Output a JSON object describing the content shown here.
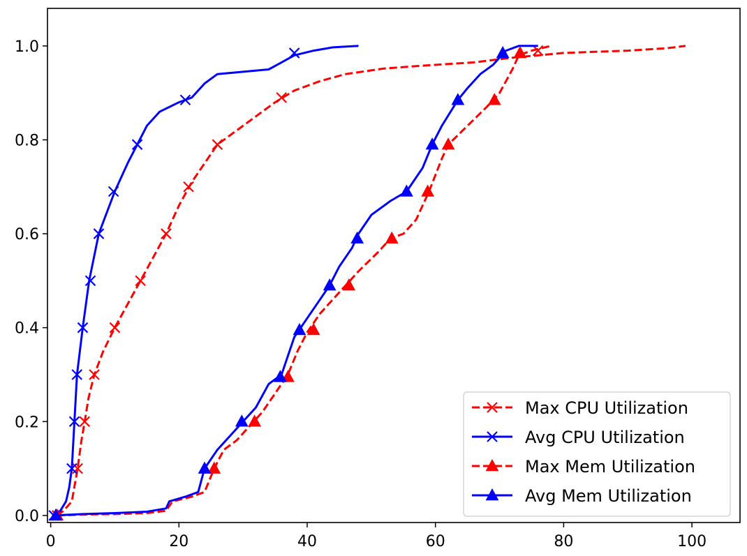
{
  "chart_data": {
    "type": "line",
    "title": "",
    "xlabel": "",
    "ylabel": "",
    "xlim": [
      -0.5,
      107.5
    ],
    "ylim": [
      -0.015,
      1.08
    ],
    "grid": false,
    "legend_position": "lower-right",
    "x_ticks": [
      {
        "value": 0,
        "label": "0"
      },
      {
        "value": 20,
        "label": "20"
      },
      {
        "value": 40,
        "label": "40"
      },
      {
        "value": 60,
        "label": "60"
      },
      {
        "value": 80,
        "label": "80"
      },
      {
        "value": 100,
        "label": "100"
      }
    ],
    "y_ticks": [
      {
        "value": 0.0,
        "label": "0.0"
      },
      {
        "value": 0.2,
        "label": "0.2"
      },
      {
        "value": 0.4,
        "label": "0.4"
      },
      {
        "value": 0.6,
        "label": "0.6"
      },
      {
        "value": 0.8,
        "label": "0.8"
      },
      {
        "value": 1.0,
        "label": "1.0"
      }
    ],
    "series": [
      {
        "name": "Max CPU Utilization",
        "color": "#ff0000",
        "dash": true,
        "marker": "x",
        "points": [
          [
            1,
            0.0
          ],
          [
            2,
            0.01
          ],
          [
            3.3,
            0.03
          ],
          [
            4.2,
            0.1
          ],
          [
            4.8,
            0.16
          ],
          [
            5.3,
            0.2
          ],
          [
            5.9,
            0.25
          ],
          [
            6.8,
            0.3
          ],
          [
            8.2,
            0.35
          ],
          [
            10,
            0.4
          ],
          [
            12,
            0.45
          ],
          [
            14,
            0.5
          ],
          [
            16,
            0.55
          ],
          [
            18,
            0.6
          ],
          [
            20,
            0.66
          ],
          [
            22,
            0.71
          ],
          [
            24,
            0.75
          ],
          [
            26,
            0.79
          ],
          [
            29,
            0.82
          ],
          [
            32,
            0.85
          ],
          [
            35,
            0.88
          ],
          [
            38,
            0.905
          ],
          [
            42,
            0.925
          ],
          [
            46,
            0.94
          ],
          [
            52,
            0.952
          ],
          [
            58,
            0.958
          ],
          [
            66,
            0.965
          ],
          [
            72,
            0.975
          ],
          [
            80,
            0.985
          ],
          [
            90,
            0.99
          ],
          [
            96,
            0.995
          ],
          [
            99,
            1.0
          ]
        ],
        "markers": [
          [
            1,
            0.0
          ],
          [
            4.2,
            0.1
          ],
          [
            5.3,
            0.2
          ],
          [
            6.8,
            0.3
          ],
          [
            10,
            0.4
          ],
          [
            14,
            0.5
          ],
          [
            18,
            0.6
          ],
          [
            21.5,
            0.7
          ],
          [
            26,
            0.79
          ],
          [
            36,
            0.89
          ],
          [
            76,
            0.99
          ]
        ]
      },
      {
        "name": "Avg CPU Utilization",
        "color": "#0000ff",
        "dash": false,
        "marker": "x",
        "points": [
          [
            0.5,
            0.0
          ],
          [
            1.5,
            0.01
          ],
          [
            2.4,
            0.03
          ],
          [
            2.9,
            0.06
          ],
          [
            3.3,
            0.1
          ],
          [
            3.7,
            0.2
          ],
          [
            4.1,
            0.3
          ],
          [
            5.0,
            0.4
          ],
          [
            6.0,
            0.5
          ],
          [
            7.5,
            0.6
          ],
          [
            10,
            0.69
          ],
          [
            12,
            0.75
          ],
          [
            13.5,
            0.79
          ],
          [
            15,
            0.83
          ],
          [
            17,
            0.86
          ],
          [
            20,
            0.88
          ],
          [
            22,
            0.89
          ],
          [
            24,
            0.92
          ],
          [
            26,
            0.94
          ],
          [
            30,
            0.945
          ],
          [
            34,
            0.95
          ],
          [
            36,
            0.965
          ],
          [
            38,
            0.98
          ],
          [
            41,
            0.99
          ],
          [
            44,
            0.997
          ],
          [
            48,
            1.0
          ]
        ],
        "markers": [
          [
            0.5,
            0.0
          ],
          [
            3.3,
            0.1
          ],
          [
            3.7,
            0.2
          ],
          [
            4.1,
            0.3
          ],
          [
            5.0,
            0.4
          ],
          [
            6.2,
            0.5
          ],
          [
            7.5,
            0.6
          ],
          [
            9.8,
            0.69
          ],
          [
            13.5,
            0.79
          ],
          [
            21,
            0.885
          ],
          [
            38,
            0.985
          ]
        ]
      },
      {
        "name": "Max Mem Utilization",
        "color": "#ff0000",
        "dash": true,
        "marker": "triangle",
        "points": [
          [
            1,
            0.0
          ],
          [
            5,
            0.002
          ],
          [
            10,
            0.003
          ],
          [
            15,
            0.005
          ],
          [
            18,
            0.01
          ],
          [
            19,
            0.03
          ],
          [
            22,
            0.04
          ],
          [
            24,
            0.05
          ],
          [
            25.5,
            0.1
          ],
          [
            27,
            0.14
          ],
          [
            29,
            0.16
          ],
          [
            31,
            0.19
          ],
          [
            33,
            0.22
          ],
          [
            35,
            0.26
          ],
          [
            37,
            0.3
          ],
          [
            38.5,
            0.35
          ],
          [
            40,
            0.39
          ],
          [
            42,
            0.43
          ],
          [
            44,
            0.46
          ],
          [
            46,
            0.49
          ],
          [
            48,
            0.52
          ],
          [
            51,
            0.56
          ],
          [
            53,
            0.59
          ],
          [
            55,
            0.6
          ],
          [
            57,
            0.63
          ],
          [
            59,
            0.69
          ],
          [
            61,
            0.76
          ],
          [
            62,
            0.79
          ],
          [
            65,
            0.83
          ],
          [
            68,
            0.87
          ],
          [
            70,
            0.9
          ],
          [
            72,
            0.95
          ],
          [
            73,
            0.98
          ],
          [
            75,
            0.99
          ],
          [
            78,
            1.0
          ]
        ],
        "markers": [
          [
            1,
            0.0
          ],
          [
            25.5,
            0.1
          ],
          [
            31.8,
            0.2
          ],
          [
            37,
            0.295
          ],
          [
            41,
            0.395
          ],
          [
            46.5,
            0.49
          ],
          [
            53.2,
            0.59
          ],
          [
            58.8,
            0.69
          ],
          [
            62,
            0.79
          ],
          [
            69.2,
            0.885
          ],
          [
            73.2,
            0.985
          ]
        ]
      },
      {
        "name": "Avg Mem Utilization",
        "color": "#0000ff",
        "dash": false,
        "marker": "triangle",
        "points": [
          [
            0.5,
            0.0
          ],
          [
            5,
            0.003
          ],
          [
            10,
            0.005
          ],
          [
            15,
            0.008
          ],
          [
            18,
            0.015
          ],
          [
            18.5,
            0.03
          ],
          [
            21,
            0.04
          ],
          [
            23,
            0.05
          ],
          [
            24,
            0.1
          ],
          [
            26,
            0.14
          ],
          [
            28,
            0.17
          ],
          [
            30,
            0.2
          ],
          [
            32,
            0.23
          ],
          [
            34,
            0.28
          ],
          [
            36,
            0.3
          ],
          [
            37,
            0.34
          ],
          [
            38,
            0.38
          ],
          [
            40,
            0.42
          ],
          [
            42,
            0.46
          ],
          [
            43.5,
            0.49
          ],
          [
            45,
            0.53
          ],
          [
            47,
            0.57
          ],
          [
            48,
            0.6
          ],
          [
            50,
            0.64
          ],
          [
            53,
            0.67
          ],
          [
            55.5,
            0.69
          ],
          [
            58,
            0.74
          ],
          [
            59.5,
            0.79
          ],
          [
            61,
            0.83
          ],
          [
            63.5,
            0.885
          ],
          [
            65,
            0.91
          ],
          [
            67,
            0.94
          ],
          [
            69,
            0.96
          ],
          [
            71,
            0.99
          ],
          [
            73,
            1.0
          ],
          [
            76,
            1.0
          ]
        ],
        "markers": [
          [
            0.8,
            0.0
          ],
          [
            24,
            0.1
          ],
          [
            29.8,
            0.2
          ],
          [
            35.8,
            0.295
          ],
          [
            38.8,
            0.395
          ],
          [
            43.5,
            0.49
          ],
          [
            47.8,
            0.59
          ],
          [
            55.5,
            0.69
          ],
          [
            59.5,
            0.79
          ],
          [
            63.5,
            0.885
          ],
          [
            70.5,
            0.985
          ]
        ]
      }
    ]
  }
}
